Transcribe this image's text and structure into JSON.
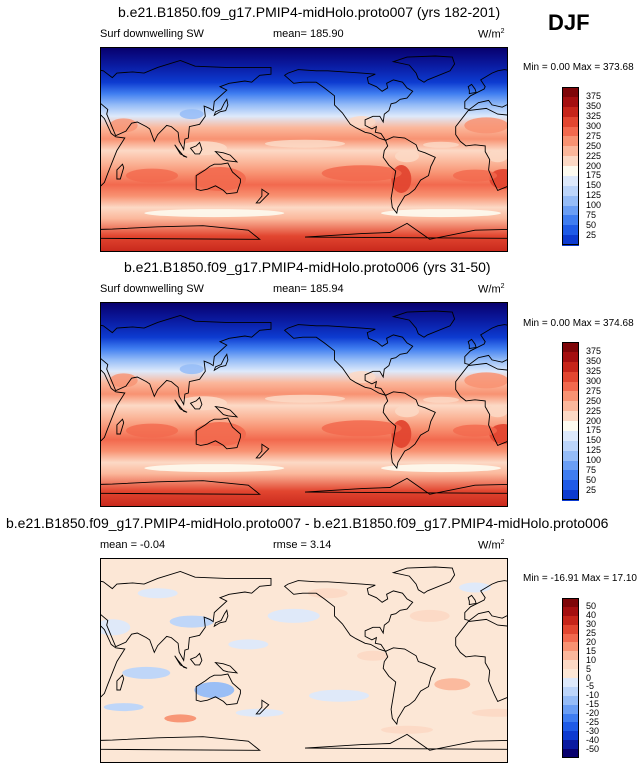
{
  "season": "DJF",
  "colors": {
    "coast": "#000000",
    "abs_scale": [
      "#08006e",
      "#0a1aa0",
      "#0d3bd0",
      "#1f5be6",
      "#3f7df0",
      "#6a9ef4",
      "#95bcf7",
      "#bcd5fa",
      "#dde9fb",
      "#fdfbf0",
      "#fcd9c5",
      "#fbb79b",
      "#f89272",
      "#f2694e",
      "#e24630",
      "#c6251a",
      "#a40f10",
      "#7e0609"
    ],
    "diff_scale": [
      "#08006e",
      "#0a1aa0",
      "#0d3bd0",
      "#1f5be6",
      "#3f7df0",
      "#6a9ef4",
      "#95bcf7",
      "#bcd5fa",
      "#dde9fb",
      "#fce7d6",
      "#fcd9c5",
      "#fbb79b",
      "#f89272",
      "#f2694e",
      "#e24630",
      "#c6251a",
      "#a40f10",
      "#7e0609"
    ]
  },
  "panels": [
    {
      "title": "b.e21.B1850.f09_g17.PMIP4-midHolo.proto007 (yrs 182-201)",
      "variable": "Surf downwelling SW",
      "mean_text": "mean= 185.90",
      "units": "W/m",
      "units_exp": "2",
      "min_max": "Min =   0.00 Max = 373.68"
    },
    {
      "title": "b.e21.B1850.f09_g17.PMIP4-midHolo.proto006 (yrs 31-50)",
      "variable": "Surf downwelling SW",
      "mean_text": "mean= 185.94",
      "units": "W/m",
      "units_exp": "2",
      "min_max": "Min =   0.00 Max = 374.68"
    },
    {
      "title": "b.e21.B1850.f09_g17.PMIP4-midHolo.proto007 - b.e21.B1850.f09_g17.PMIP4-midHolo.proto006",
      "mean_text": "mean =  -0.04",
      "rmse_text": "rmse =   3.14",
      "units": "W/m",
      "units_exp": "2",
      "min_max": "Min = -16.91 Max =  17.10"
    }
  ],
  "chart_data": [
    {
      "type": "heatmap",
      "title": "b.e21.B1850.f09_g17.PMIP4-midHolo.proto007 (yrs 182-201)",
      "variable": "Surf downwelling SW",
      "units": "W/m2",
      "mean": 185.9,
      "min": 0.0,
      "max": 373.68,
      "zonal_profile": {
        "lat": [
          90,
          75,
          60,
          50,
          40,
          30,
          20,
          10,
          0,
          -10,
          -20,
          -30,
          -40,
          -50,
          -60,
          -75,
          -90
        ],
        "value": [
          0,
          5,
          40,
          85,
          140,
          195,
          250,
          280,
          245,
          255,
          290,
          300,
          280,
          230,
          265,
          345,
          365
        ]
      },
      "colorbar": {
        "levels": [
          "375",
          "350",
          "325",
          "300",
          "275",
          "250",
          "225",
          "200",
          "175",
          "150",
          "125",
          "100",
          "75",
          "50",
          "25"
        ]
      }
    },
    {
      "type": "heatmap",
      "title": "b.e21.B1850.f09_g17.PMIP4-midHolo.proto006 (yrs 31-50)",
      "variable": "Surf downwelling SW",
      "units": "W/m2",
      "mean": 185.94,
      "min": 0.0,
      "max": 374.68,
      "zonal_profile": {
        "lat": [
          90,
          75,
          60,
          50,
          40,
          30,
          20,
          10,
          0,
          -10,
          -20,
          -30,
          -40,
          -50,
          -60,
          -75,
          -90
        ],
        "value": [
          0,
          5,
          40,
          85,
          140,
          195,
          250,
          280,
          245,
          255,
          290,
          300,
          280,
          230,
          265,
          345,
          365
        ]
      },
      "colorbar": {
        "levels": [
          "375",
          "350",
          "325",
          "300",
          "275",
          "250",
          "225",
          "200",
          "175",
          "150",
          "125",
          "100",
          "75",
          "50",
          "25"
        ]
      }
    },
    {
      "type": "heatmap",
      "title": "b.e21.B1850.f09_g17.PMIP4-midHolo.proto007 - b.e21.B1850.f09_g17.PMIP4-midHolo.proto006",
      "units": "W/m2",
      "mean": -0.04,
      "rmse": 3.14,
      "min": -16.91,
      "max": 17.1,
      "colorbar": {
        "levels": [
          "50",
          "40",
          "30",
          "25",
          "20",
          "15",
          "10",
          "5",
          "0",
          "-5",
          "-10",
          "-15",
          "-20",
          "-25",
          "-30",
          "-40",
          "-50"
        ]
      }
    }
  ]
}
